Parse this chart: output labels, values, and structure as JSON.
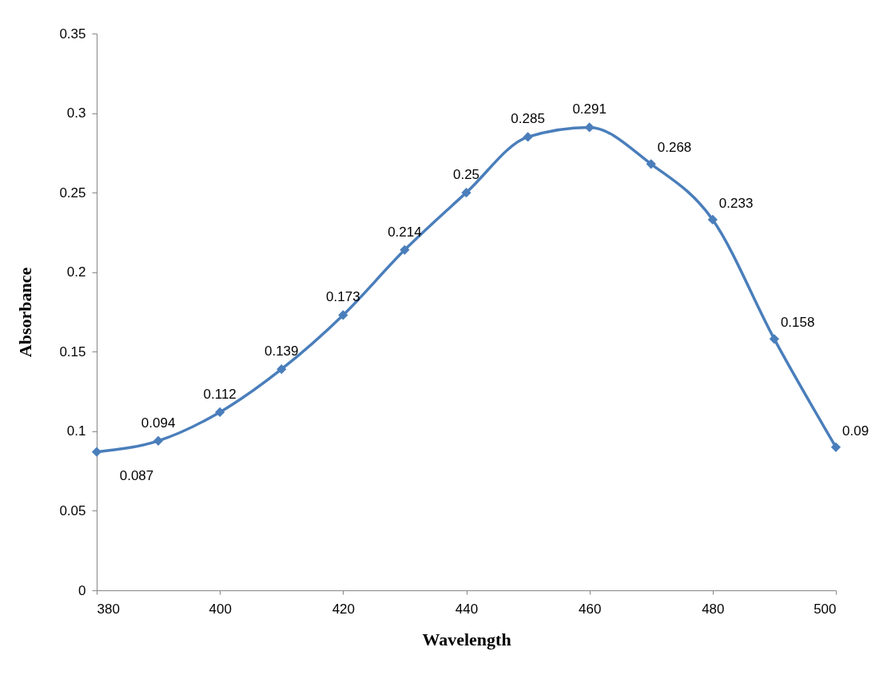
{
  "chart_data": {
    "type": "line",
    "xlabel": "Wavelength",
    "ylabel": "Absorbance",
    "x": [
      380,
      390,
      400,
      410,
      420,
      430,
      440,
      450,
      460,
      470,
      480,
      490,
      500
    ],
    "series": [
      {
        "color": "#4a7ebb",
        "values": [
          0.087,
          0.094,
          0.112,
          0.139,
          0.173,
          0.214,
          0.25,
          0.285,
          0.291,
          0.268,
          0.233,
          0.158,
          0.09
        ]
      }
    ],
    "xlim": [
      380,
      500
    ],
    "xticks": [
      380,
      400,
      420,
      440,
      460,
      480,
      500
    ],
    "ylim": [
      0,
      0.35
    ],
    "yticks": [
      0,
      0.05,
      0.1,
      0.15,
      0.2,
      0.25,
      0.3,
      0.35
    ],
    "grid": false,
    "legend": false,
    "marker": "diamond",
    "line_style": "solid",
    "data_labels": true
  }
}
